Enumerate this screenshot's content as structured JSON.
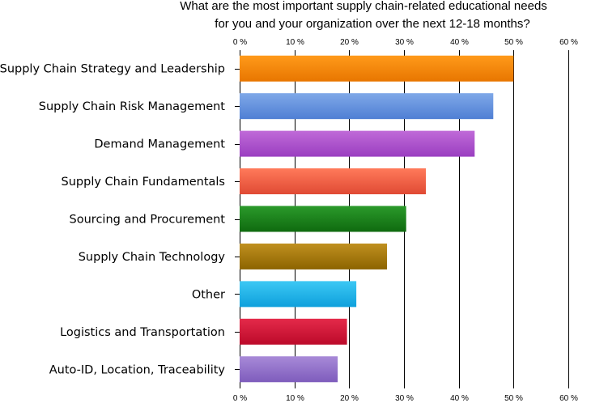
{
  "chart_data": {
    "type": "bar",
    "orientation": "horizontal",
    "title_lines": [
      "What are the most important supply chain-related educational needs",
      "for you and your organization over the next 12-18 months?"
    ],
    "categories": [
      "Supply Chain Strategy and Leadership",
      "Supply Chain Risk Management",
      "Demand Management",
      "Supply Chain Fundamentals",
      "Sourcing and Procurement",
      "Supply Chain Technology",
      "Other",
      "Logistics and Transportation",
      "Auto-ID, Location, Traceability"
    ],
    "values": [
      50,
      46.3,
      42.9,
      34,
      30.4,
      26.9,
      21.3,
      19.6,
      17.9
    ],
    "unit": "%",
    "xlim": [
      0,
      60
    ],
    "x_ticks": [
      0,
      10,
      20,
      30,
      40,
      50,
      60
    ],
    "x_tick_labels": [
      "0 %",
      "10 %",
      "20 %",
      "30 %",
      "40 %",
      "50 %",
      "60 %"
    ],
    "tick_labels_top_and_bottom": true,
    "grid": true,
    "legend": "none",
    "bar_colors": [
      [
        "#ff9a1a",
        "#e87600"
      ],
      [
        "#7fa8e8",
        "#4f7fd4"
      ],
      [
        "#c06ad8",
        "#9a3ec0"
      ],
      [
        "#ff7a5a",
        "#e04a34"
      ],
      [
        "#2b9a2b",
        "#0f6a0f"
      ],
      [
        "#c09020",
        "#8c6400"
      ],
      [
        "#3cc8f4",
        "#0ea0dc"
      ],
      [
        "#e42a4a",
        "#bc0a2a"
      ],
      [
        "#a88ad8",
        "#7e5cbc"
      ]
    ]
  }
}
